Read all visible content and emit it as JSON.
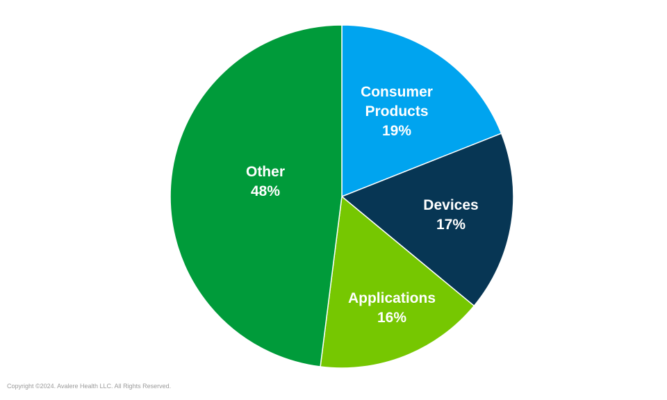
{
  "chart_data": {
    "type": "pie",
    "categories": [
      "Consumer Products",
      "Devices",
      "Applications",
      "Other"
    ],
    "values": [
      19,
      17,
      16,
      48
    ],
    "labels": [
      {
        "lines": [
          "Consumer",
          "Products"
        ],
        "percent": "19%"
      },
      {
        "lines": [
          "Devices"
        ],
        "percent": "17%"
      },
      {
        "lines": [
          "Applications"
        ],
        "percent": "16%"
      },
      {
        "lines": [
          "Other"
        ],
        "percent": "48%"
      }
    ],
    "colors": [
      "#00a4ef",
      "#073654",
      "#76c701",
      "#009b3a"
    ],
    "start_angle_deg": 0,
    "direction": "clockwise",
    "slice_separator_color": "#ffffff"
  },
  "footer": {
    "copyright": "Copyright ©2024. Avalere Health LLC. All Rights Reserved."
  }
}
